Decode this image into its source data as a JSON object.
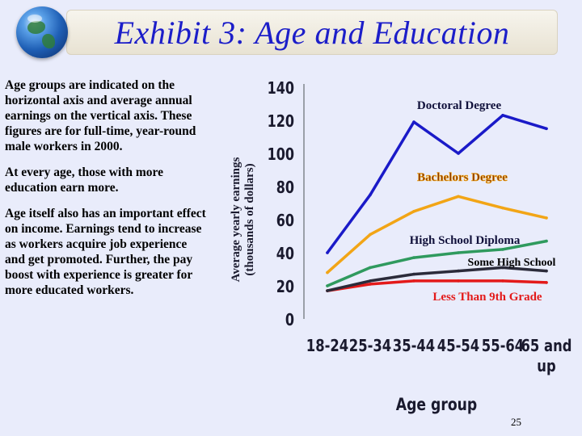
{
  "title": "Exhibit 3:  Age and Education",
  "notes": [
    "Age groups are indicated on the horizontal axis and average annual earnings on the vertical axis.  These figures are for full-time, year-round male workers in 2000.",
    "At every age, those with more education earn more.",
    "Age itself also has an important effect on income.  Earnings tend to increase as workers acquire job experience and get promoted.  Further, the pay boost with experience is greater for more educated workers."
  ],
  "page_number": "25",
  "chart_data": {
    "type": "line",
    "title": "",
    "xlabel": "Age group",
    "ylabel": "Average yearly earnings (thousands of dollars)",
    "ylabel_lines": [
      "Average yearly earnings",
      "(thousands of dollars)"
    ],
    "categories": [
      "18-24",
      "25-34",
      "35-44",
      "45-54",
      "55-64",
      "65 and up"
    ],
    "category_lines": [
      [
        "18-24"
      ],
      [
        "25-34"
      ],
      [
        "35-44"
      ],
      [
        "45-54"
      ],
      [
        "55-64"
      ],
      [
        "65 and",
        "up"
      ]
    ],
    "ylim": [
      0,
      140
    ],
    "yticks": [
      0,
      20,
      40,
      60,
      80,
      100,
      120,
      140
    ],
    "grid": false,
    "legend": "inline labels",
    "series": [
      {
        "name": "Doctoral Degree",
        "color": "#1a1ac8",
        "values": [
          40,
          75,
          119,
          100,
          123,
          115
        ]
      },
      {
        "name": "Bachelors Degree",
        "color": "#f2a516",
        "values": [
          28,
          51,
          65,
          74,
          67,
          61
        ]
      },
      {
        "name": "High School Diploma",
        "color": "#2f9a5e",
        "values": [
          20,
          31,
          37,
          40,
          42,
          47
        ]
      },
      {
        "name": "Some High School",
        "color": "#2b2b3a",
        "values": [
          17,
          23,
          27,
          29,
          31,
          29
        ]
      },
      {
        "name": "Less Than 9th Grade",
        "color": "#e31a1a",
        "values": [
          17,
          21,
          23,
          23,
          23,
          22
        ]
      }
    ]
  }
}
